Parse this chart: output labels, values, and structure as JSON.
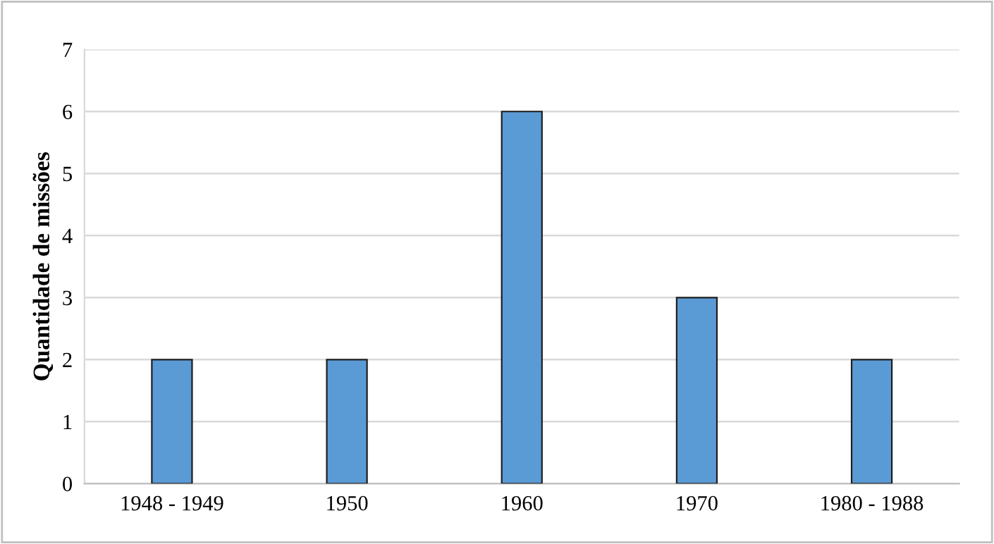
{
  "chart_data": {
    "type": "bar",
    "ylabel": "Quantidade de missões",
    "categories": [
      "1948 - 1949",
      "1950",
      "1960",
      "1970",
      "1980 - 1988"
    ],
    "values": [
      2,
      2,
      6,
      3,
      2
    ],
    "color": "#5b9bd5",
    "ylim": [
      0,
      7
    ],
    "yticks": [
      0,
      1,
      2,
      3,
      4,
      5,
      6,
      7
    ],
    "grid": "y"
  }
}
